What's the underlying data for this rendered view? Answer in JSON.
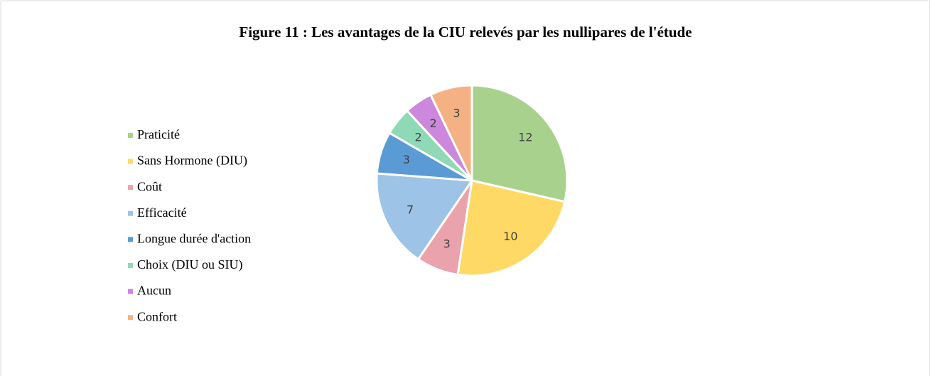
{
  "chart_data": {
    "type": "pie",
    "title": "Figure 11 : Les avantages de la CIU relevés par les nullipares de l'étude",
    "categories": [
      "Praticité",
      "Sans Hormone (DIU)",
      "Coût",
      "Efficacité",
      "Longue durée d'action",
      "Choix (DIU ou SIU)",
      "Aucun",
      "Confort"
    ],
    "values": [
      12,
      10,
      3,
      7,
      3,
      2,
      2,
      3
    ],
    "colors": [
      "#a9d18e",
      "#ffd966",
      "#eaa2ad",
      "#9dc3e6",
      "#5b9bd5",
      "#8fd9b6",
      "#cc88dd",
      "#f4b183"
    ],
    "legend": "left"
  }
}
